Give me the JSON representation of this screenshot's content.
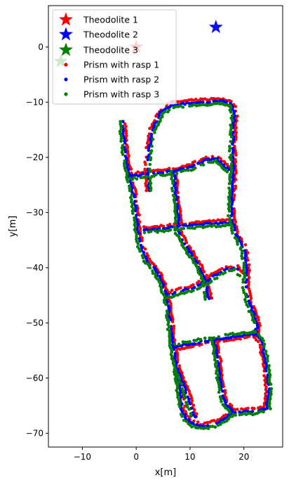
{
  "chart_data": {
    "type": "scatter",
    "title": "",
    "xlabel": "x[m]",
    "ylabel": "y[m]",
    "xlim": [
      -16.3,
      27.2
    ],
    "ylim": [
      -72.5,
      7.5
    ],
    "xticks": [
      -10,
      0,
      10,
      20
    ],
    "yticks": [
      0,
      -10,
      -20,
      -30,
      -40,
      -50,
      -60,
      -70
    ],
    "grid": false,
    "legend_position": "top-left",
    "theodolites": [
      {
        "name": "Theodolite 1",
        "x": 0.0,
        "y": 0.0,
        "color": "#ff0000"
      },
      {
        "name": "Theodolite 2",
        "x": 14.8,
        "y": 3.6,
        "color": "#0000ff"
      },
      {
        "name": "Theodolite 3",
        "x": -14.0,
        "y": -2.6,
        "color": "#008000"
      }
    ],
    "series": [
      {
        "name": "Prism with rasp 1",
        "color": "#ff0000",
        "offset": 0.45
      },
      {
        "name": "Prism with rasp 2",
        "color": "#0000ff",
        "offset": 0.0
      },
      {
        "name": "Prism with rasp 3",
        "color": "#008000",
        "offset": -0.45
      }
    ],
    "paths": [
      [
        [
          -2.5,
          -13.5
        ],
        [
          -2.3,
          -17
        ],
        [
          -1.8,
          -21
        ],
        [
          -1.2,
          -23.5
        ],
        [
          2,
          -23
        ],
        [
          7,
          -22.5
        ]
      ],
      [
        [
          -1.2,
          -23.5
        ],
        [
          -0.3,
          -28
        ],
        [
          0.3,
          -33
        ],
        [
          0.8,
          -36
        ],
        [
          1.8,
          -38.5
        ],
        [
          3.2,
          -40
        ],
        [
          4.5,
          -42
        ],
        [
          5.6,
          -45
        ]
      ],
      [
        [
          2.3,
          -26
        ],
        [
          2.2,
          -20
        ],
        [
          3,
          -15
        ],
        [
          4.5,
          -12
        ],
        [
          6.5,
          -10.5
        ],
        [
          12,
          -10
        ],
        [
          16,
          -9.8
        ],
        [
          17.8,
          -10.5
        ],
        [
          18.2,
          -12.5
        ],
        [
          17.9,
          -18
        ],
        [
          18,
          -22
        ],
        [
          17.8,
          -26
        ],
        [
          17.7,
          -31
        ],
        [
          18.5,
          -34
        ],
        [
          20,
          -36.5
        ],
        [
          20.5,
          -40
        ],
        [
          20.3,
          -43.5
        ],
        [
          21,
          -46.5
        ],
        [
          22.5,
          -50
        ],
        [
          22.2,
          -52
        ]
      ],
      [
        [
          7,
          -22.5
        ],
        [
          7.3,
          -26
        ],
        [
          7.8,
          -31
        ],
        [
          7.8,
          -33.5
        ],
        [
          9.2,
          -36
        ],
        [
          11.5,
          -39.5
        ],
        [
          12.8,
          -42
        ],
        [
          13.5,
          -46
        ]
      ],
      [
        [
          7,
          -22.5
        ],
        [
          10,
          -21.8
        ],
        [
          13,
          -20.5
        ],
        [
          15,
          -20.3
        ],
        [
          16.2,
          -21.5
        ],
        [
          17.5,
          -22.5
        ]
      ],
      [
        [
          1.5,
          -33.2
        ],
        [
          5.5,
          -32.8
        ],
        [
          10,
          -32.3
        ],
        [
          14,
          -32
        ],
        [
          17.7,
          -31.8
        ]
      ],
      [
        [
          5.6,
          -45
        ],
        [
          10,
          -43.8
        ],
        [
          13,
          -42.5
        ],
        [
          16,
          -40.5
        ],
        [
          18.5,
          -40
        ],
        [
          19.8,
          -41.5
        ]
      ],
      [
        [
          5.6,
          -45
        ],
        [
          6.2,
          -49
        ],
        [
          6.8,
          -54
        ],
        [
          7.5,
          -58
        ],
        [
          8.2,
          -63
        ],
        [
          8.5,
          -66
        ],
        [
          9.8,
          -68
        ],
        [
          12,
          -68.8
        ],
        [
          15,
          -68.2
        ],
        [
          18,
          -66.3
        ],
        [
          22,
          -66
        ],
        [
          24.3,
          -65.5
        ],
        [
          24.6,
          -62
        ],
        [
          24,
          -57
        ],
        [
          23.3,
          -53.5
        ],
        [
          22.2,
          -52
        ],
        [
          18,
          -52.5
        ],
        [
          14.5,
          -53
        ],
        [
          10,
          -53.8
        ],
        [
          6.8,
          -54.4
        ]
      ],
      [
        [
          14.5,
          -53
        ],
        [
          15.2,
          -57
        ],
        [
          15.8,
          -62
        ],
        [
          16.5,
          -64.5
        ],
        [
          18,
          -66.3
        ]
      ],
      [
        [
          7.5,
          -58
        ],
        [
          8.5,
          -60.5
        ],
        [
          9.5,
          -63
        ],
        [
          10.2,
          -65.5
        ],
        [
          11,
          -67.5
        ]
      ]
    ]
  },
  "theodolite_legend": [
    "Theodolite 1",
    "Theodolite 2",
    "Theodolite 3"
  ],
  "prism_legend": [
    "Prism with rasp 1",
    "Prism with rasp 2",
    "Prism with rasp 3"
  ]
}
